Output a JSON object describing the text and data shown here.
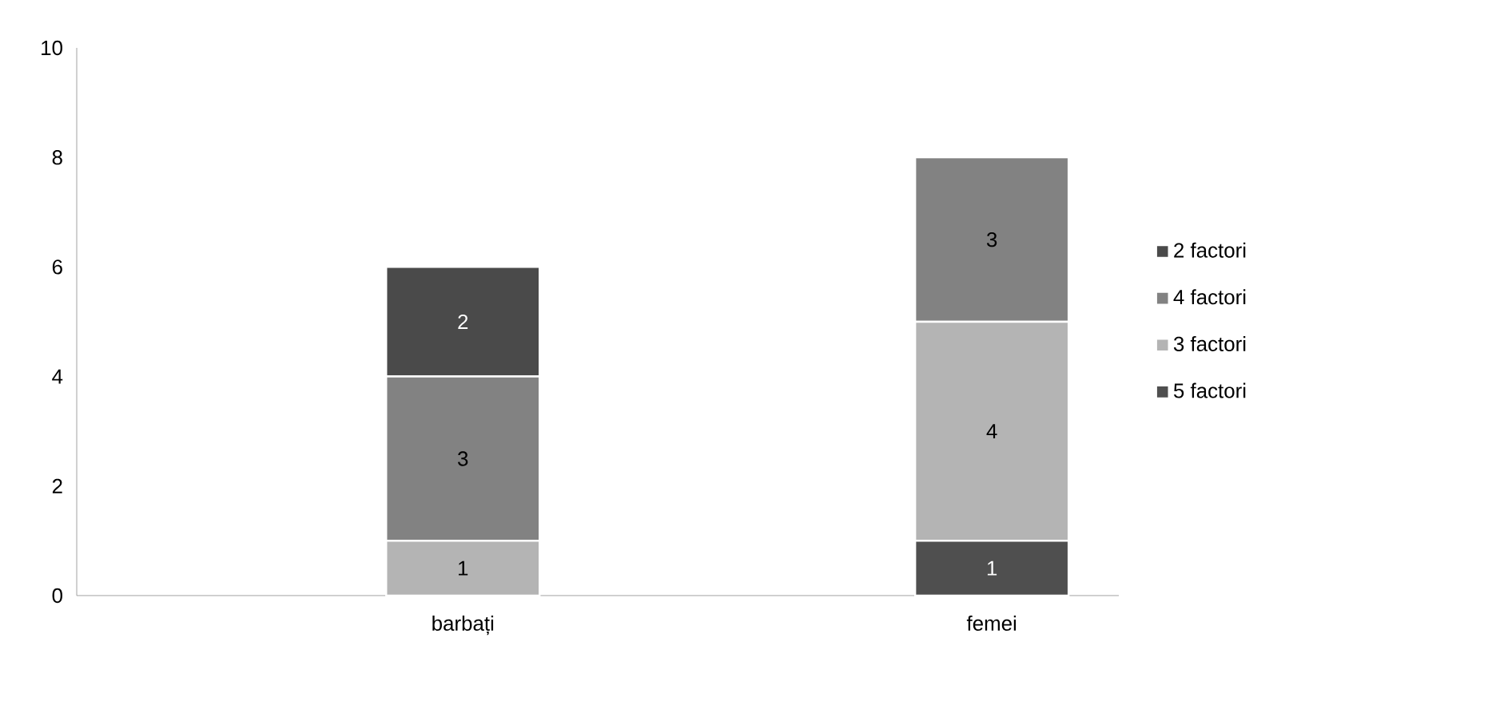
{
  "chart_data": {
    "type": "bar",
    "stacked": true,
    "categories": [
      "barbați",
      "femei"
    ],
    "ylim": [
      0,
      10
    ],
    "yticks": [
      0,
      2,
      4,
      6,
      8,
      10
    ],
    "grid": false,
    "legend": "right",
    "series": [
      {
        "name": "5 factori",
        "color": "#4f4f4f",
        "values": [
          0,
          1
        ],
        "value_labels": [
          null,
          "1"
        ]
      },
      {
        "name": "3 factori",
        "color": "#b4b4b4",
        "values": [
          1,
          4
        ],
        "value_labels": [
          "1",
          "4"
        ]
      },
      {
        "name": "4 factori",
        "color": "#828282",
        "values": [
          3,
          3
        ],
        "value_labels": [
          "3",
          "3"
        ]
      },
      {
        "name": "2 factori",
        "color": "#4a4a4a",
        "values": [
          2,
          0
        ],
        "value_labels": [
          "2",
          null
        ]
      }
    ]
  }
}
